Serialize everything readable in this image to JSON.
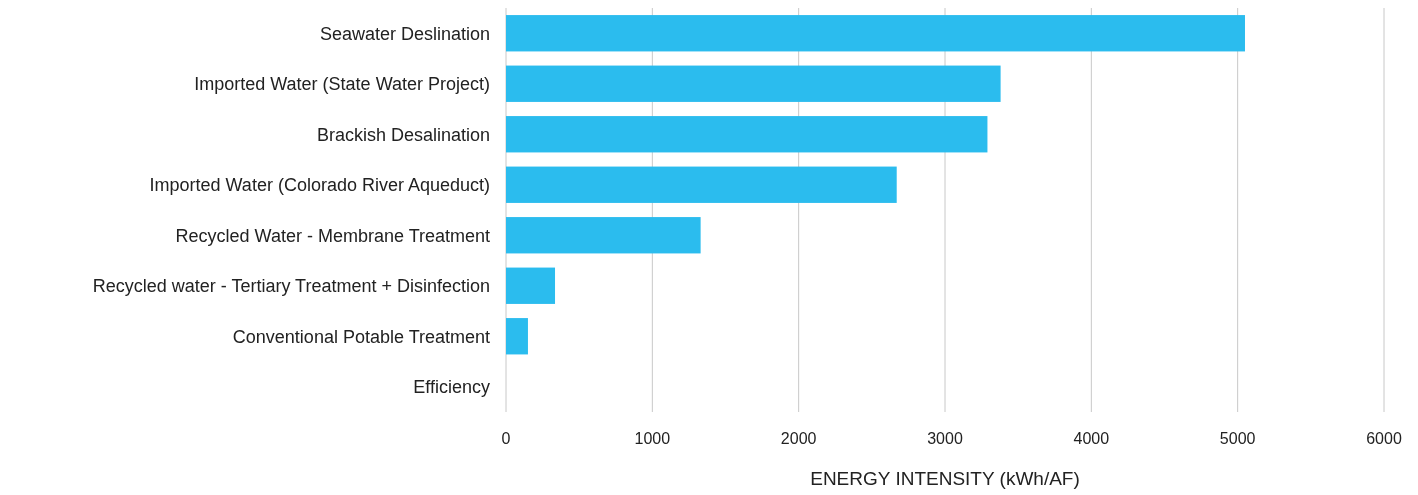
{
  "chart_data": {
    "type": "bar",
    "orientation": "horizontal",
    "categories": [
      "Seawater Deslination",
      "Imported Water (State Water Project)",
      "Brackish Desalination",
      "Imported Water (Colorado River Aqueduct)",
      "Recycled Water - Membrane Treatment",
      "Recycled water - Tertiary Treatment + Disinfection",
      "Conventional Potable Treatment",
      "Efficiency"
    ],
    "values": [
      5050,
      3380,
      3290,
      2670,
      1330,
      335,
      150,
      0
    ],
    "color": "#2bbcee",
    "xlim": [
      0,
      6000
    ],
    "xticks": [
      0,
      1000,
      2000,
      3000,
      4000,
      5000,
      6000
    ],
    "grid": "x",
    "xlabel": "ENERGY INTENSITY (kWh/AF)"
  }
}
